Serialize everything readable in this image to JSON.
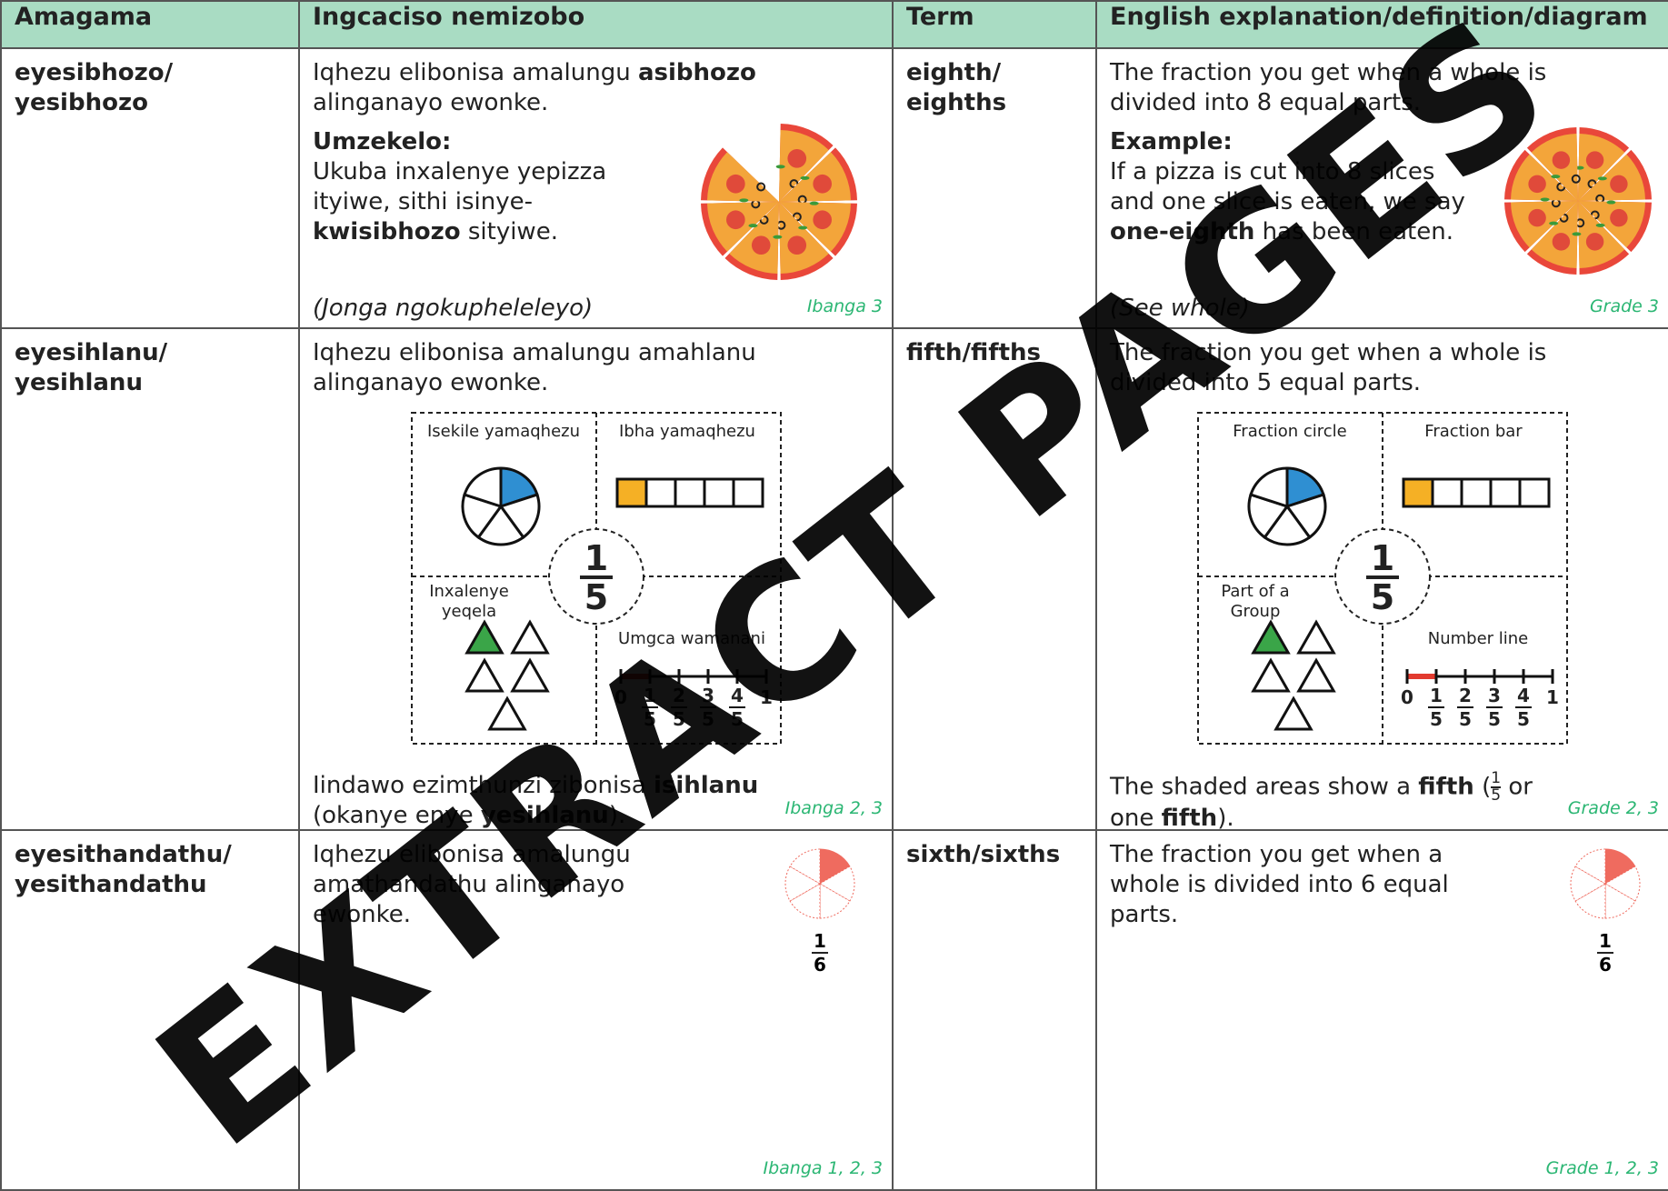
{
  "header": [
    "Amagama",
    "Ingcaciso nemizobo",
    "Term",
    "English explanation/definition/diagram"
  ],
  "rows": [
    {
      "word": [
        "eyesibhozo/",
        "yesibhozo"
      ],
      "xhosa": {
        "definition": [
          "Iqhezu elibonisa amalungu ",
          "asibhozo",
          " alinganayo ewonke."
        ],
        "example_heading": "Umzekelo:",
        "example": [
          "Ukuba inxalenye yepizza ityiwe, sithi isinye-",
          "kwisibhozo",
          " sityiwe."
        ],
        "note": "(Jonga ngokupheleleyo)",
        "grade": "Ibanga 3"
      },
      "term": [
        "eighth/",
        "eighths"
      ],
      "english": {
        "definition": "The fraction you get when a whole is divided into 8 equal parts.",
        "example_heading": "Example:",
        "example": [
          "If a pizza is cut into 8 slices and one slice is eaten, we say ",
          "one-eighth",
          " has been eaten."
        ],
        "note": "(See whole)",
        "grade": "Grade 3"
      }
    },
    {
      "word": [
        "eyesihlanu/",
        "yesihlanu"
      ],
      "xhosa": {
        "definition": "Iqhezu elibonisa amalungu amahlanu alinganayo ewonke.",
        "diagram": {
          "circle_label": "Isekile yamaqhezu",
          "bar_label": "Ibha yamaqhezu",
          "group_label": "Inxalenye yeqela",
          "line_label": "Umgca wamanani",
          "numerator": "1",
          "denominator": "5",
          "line_start": "0",
          "line_numerators": [
            "1",
            "2",
            "3",
            "4"
          ],
          "line_end": "1"
        },
        "caption": [
          "Iindawo ezimthunzi zibonisa ",
          "isihlanu",
          " (okanye enye ",
          "yesihlanu",
          ")."
        ],
        "grade": "Ibanga 2, 3"
      },
      "term": "fifth/fifths",
      "english": {
        "definition": "The fraction you get when a whole is divided into 5 equal parts.",
        "diagram": {
          "circle_label": "Fraction circle",
          "bar_label": "Fraction bar",
          "group_label": "Part of a Group",
          "line_label": "Number line",
          "numerator": "1",
          "denominator": "5",
          "line_start": "0",
          "line_numerators": [
            "1",
            "2",
            "3",
            "4"
          ],
          "line_end": "1"
        },
        "caption": [
          "The shaded areas show a ",
          "fifth",
          " (",
          "1",
          "5",
          " or one ",
          "fifth",
          ")."
        ],
        "grade": "Grade 2, 3"
      }
    },
    {
      "word": [
        "eyesithandathu/",
        "yesithandathu"
      ],
      "xhosa": {
        "definition": "Iqhezu elibonisa amalungu amathandathu alinganayo ewonke.",
        "numerator": "1",
        "denominator": "6",
        "grade": "Ibanga 1, 2, 3"
      },
      "term": "sixth/sixths",
      "english": {
        "definition": "The fraction you get when a whole is divided into 6 equal parts.",
        "numerator": "1",
        "denominator": "6",
        "grade": "Grade 1, 2, 3"
      }
    }
  ],
  "watermark": "EXTRACT PAGES"
}
